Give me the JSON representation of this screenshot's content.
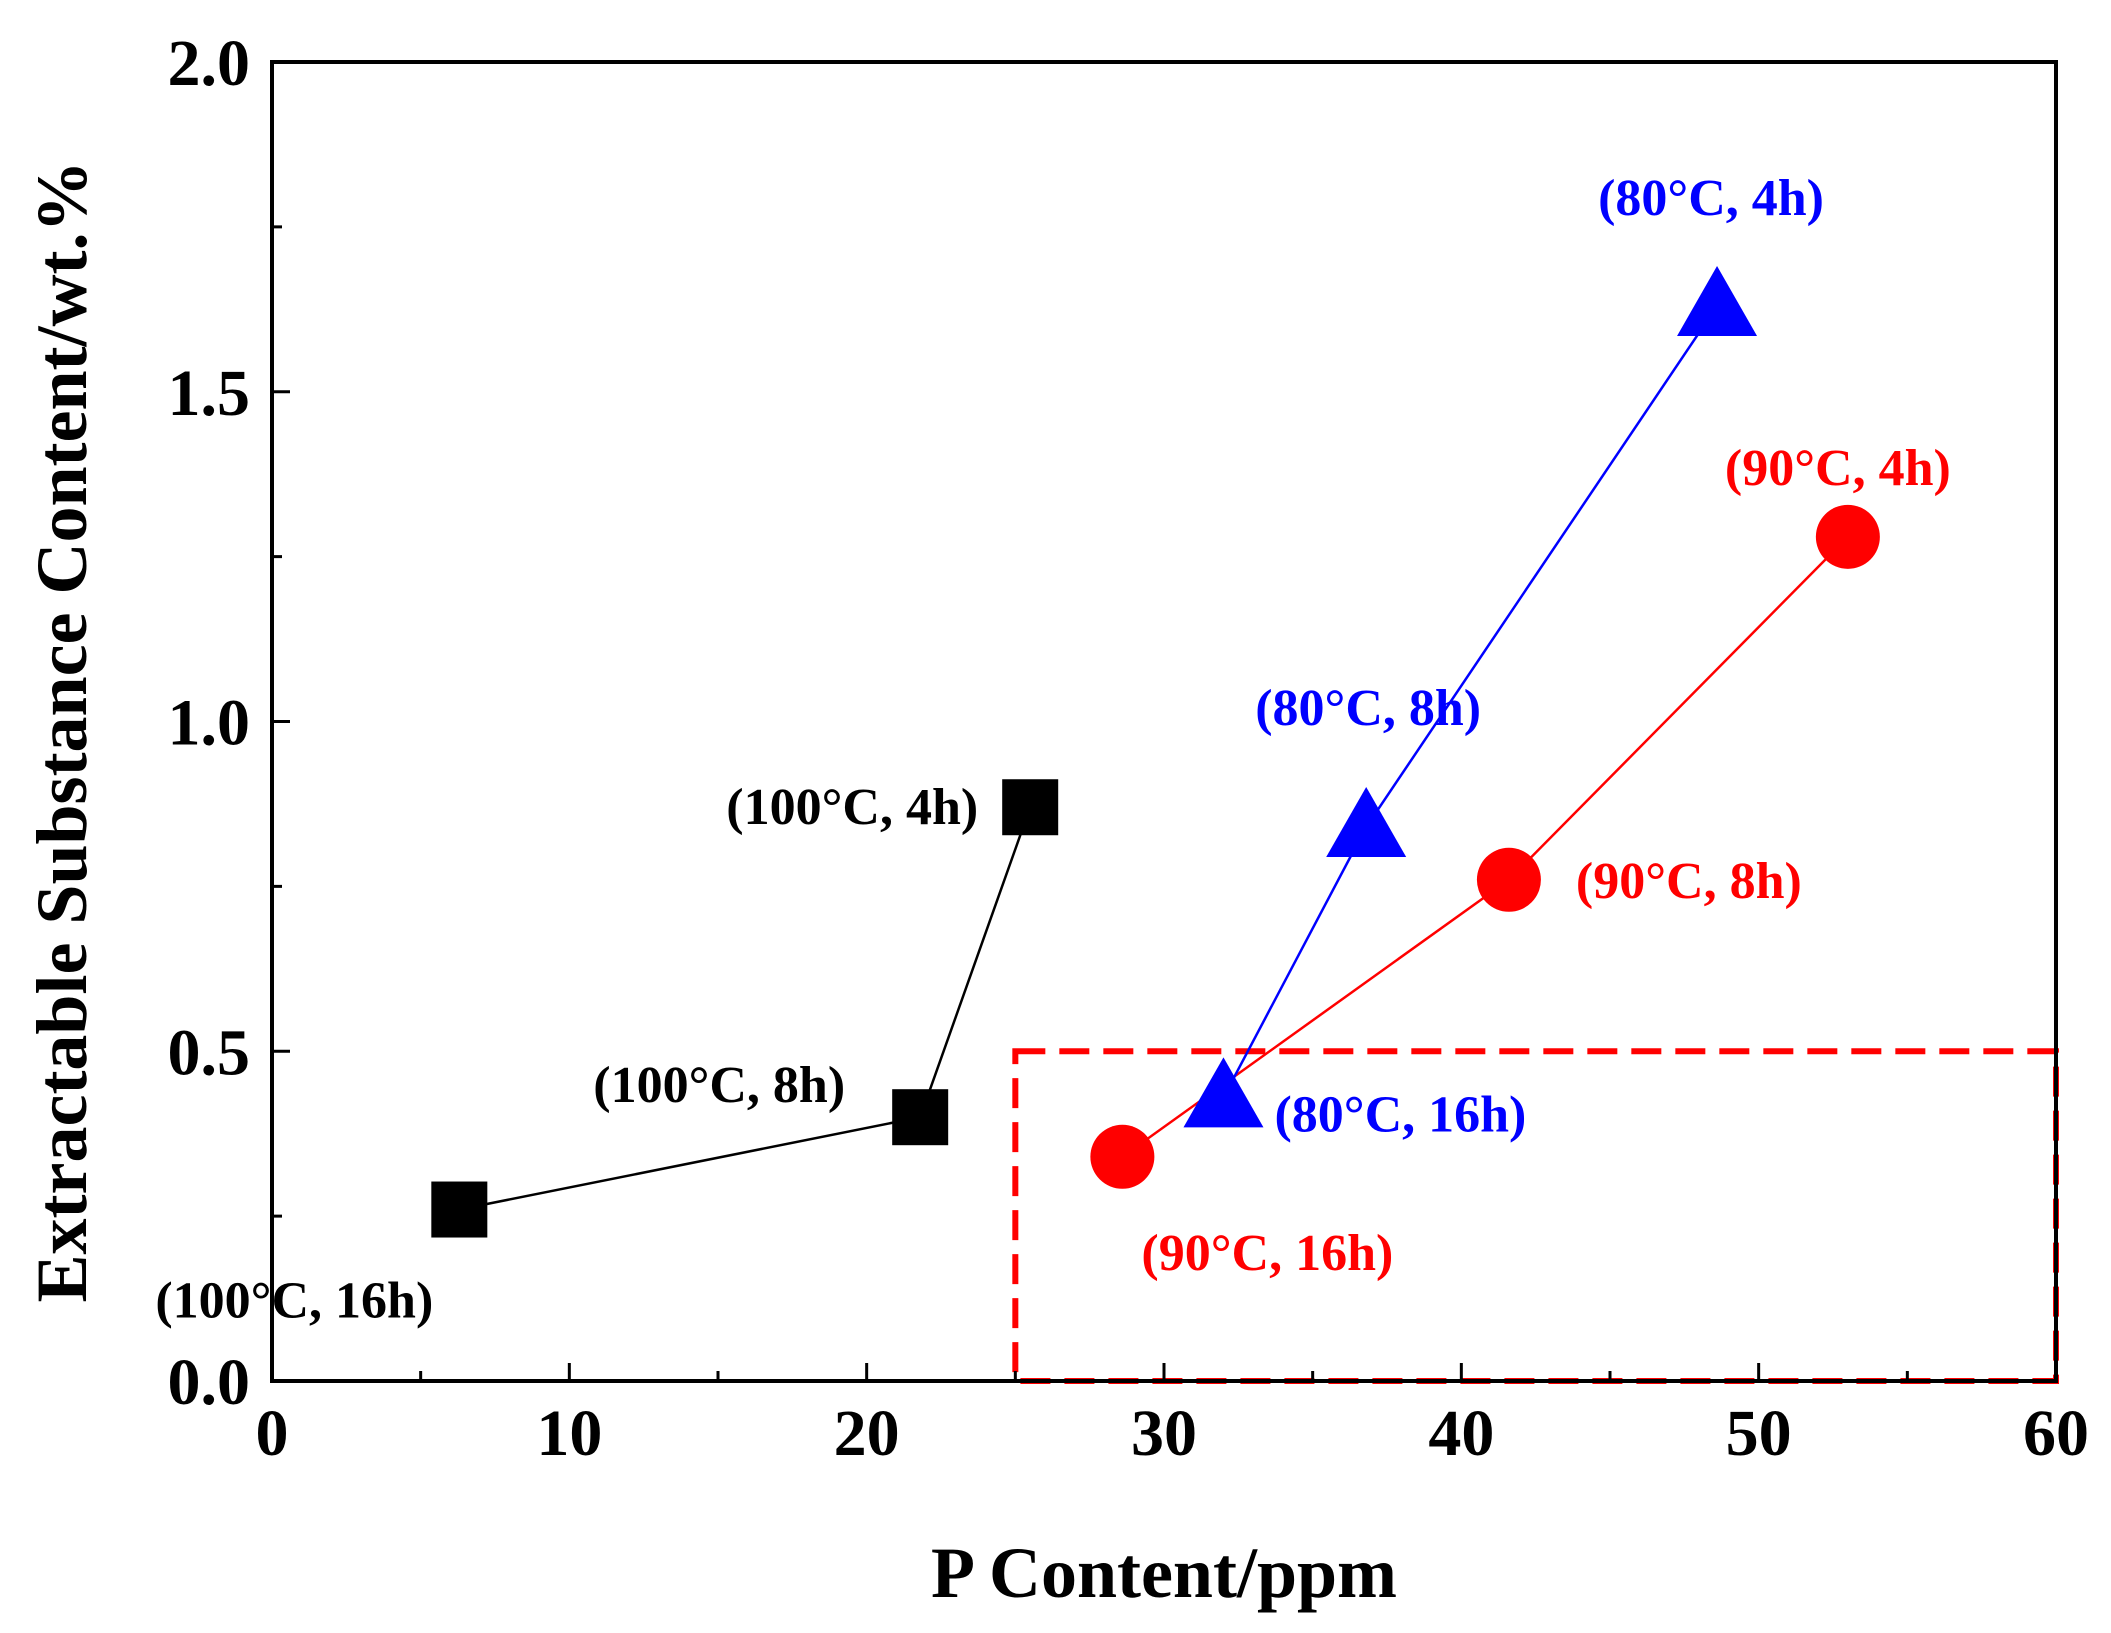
{
  "chart_data": {
    "type": "scatter",
    "title": "",
    "xlabel": "P Content/ppm",
    "ylabel": "Extractable Substance Content/wt.%",
    "xlim": [
      0,
      60
    ],
    "ylim": [
      0,
      2.0
    ],
    "xticks": [
      0,
      10,
      20,
      30,
      40,
      50,
      60
    ],
    "xtick_labels": [
      "0",
      "10",
      "20",
      "30",
      "40",
      "50",
      "60"
    ],
    "yticks": [
      0,
      0.5,
      1.0,
      1.5,
      2.0
    ],
    "ytick_labels": [
      "0.0",
      "0.5",
      "1.0",
      "1.5",
      "2.0"
    ],
    "grid": false,
    "series": [
      {
        "name": "100°C",
        "color": "#000000",
        "marker": "square",
        "points": [
          {
            "x": 6.3,
            "y": 0.26,
            "label": "(100°C, 16h)"
          },
          {
            "x": 21.8,
            "y": 0.4,
            "label": "(100°C, 8h)"
          },
          {
            "x": 25.5,
            "y": 0.87,
            "label": "(100°C, 4h)"
          }
        ]
      },
      {
        "name": "90°C",
        "color": "#ff0000",
        "marker": "circle",
        "points": [
          {
            "x": 28.6,
            "y": 0.34,
            "label": "(90°C, 16h)"
          },
          {
            "x": 41.6,
            "y": 0.76,
            "label": "(90°C, 8h)"
          },
          {
            "x": 53.0,
            "y": 1.28,
            "label": "(90°C, 4h)"
          }
        ]
      },
      {
        "name": "80°C",
        "color": "#0000ff",
        "marker": "triangle",
        "points": [
          {
            "x": 32.0,
            "y": 0.43,
            "label": "(80°C, 16h)"
          },
          {
            "x": 36.8,
            "y": 0.84,
            "label": "(80°C, 8h)"
          },
          {
            "x": 48.6,
            "y": 1.63,
            "label": "(80°C, 4h)"
          }
        ]
      }
    ],
    "region": {
      "x_range": [
        25,
        60
      ],
      "y_range": [
        0,
        0.5
      ],
      "color": "#ff0000",
      "style": "dashed"
    }
  }
}
